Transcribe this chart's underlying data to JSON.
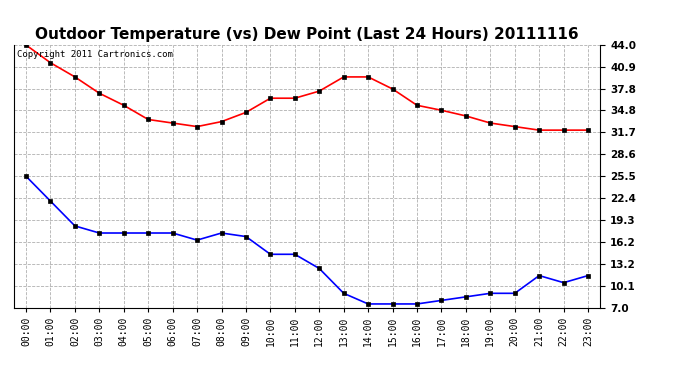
{
  "title": "Outdoor Temperature (vs) Dew Point (Last 24 Hours) 20111116",
  "copyright_text": "Copyright 2011 Cartronics.com",
  "x_labels": [
    "00:00",
    "01:00",
    "02:00",
    "03:00",
    "04:00",
    "05:00",
    "06:00",
    "07:00",
    "08:00",
    "09:00",
    "10:00",
    "11:00",
    "12:00",
    "13:00",
    "14:00",
    "15:00",
    "16:00",
    "17:00",
    "18:00",
    "19:00",
    "20:00",
    "21:00",
    "22:00",
    "23:00"
  ],
  "temp_data": [
    44.0,
    41.5,
    39.5,
    37.2,
    35.5,
    33.5,
    33.0,
    32.5,
    33.2,
    34.5,
    36.5,
    36.5,
    37.5,
    39.5,
    39.5,
    37.8,
    35.5,
    34.8,
    34.0,
    33.0,
    32.5,
    32.0,
    32.0,
    32.0
  ],
  "dew_data": [
    25.5,
    22.0,
    18.5,
    17.5,
    17.5,
    17.5,
    17.5,
    16.5,
    17.5,
    17.0,
    14.5,
    14.5,
    12.5,
    9.0,
    7.5,
    7.5,
    7.5,
    8.0,
    8.5,
    9.0,
    9.0,
    11.5,
    10.5,
    11.5
  ],
  "temp_color": "#ff0000",
  "dew_color": "#0000ff",
  "bg_color": "#ffffff",
  "grid_color": "#b0b0b0",
  "yticks": [
    7.0,
    10.1,
    13.2,
    16.2,
    19.3,
    22.4,
    25.5,
    28.6,
    31.7,
    34.8,
    37.8,
    40.9,
    44.0
  ],
  "ylim": [
    7.0,
    44.0
  ],
  "title_fontsize": 11,
  "marker": "s",
  "marker_size": 3,
  "line_width": 1.2
}
